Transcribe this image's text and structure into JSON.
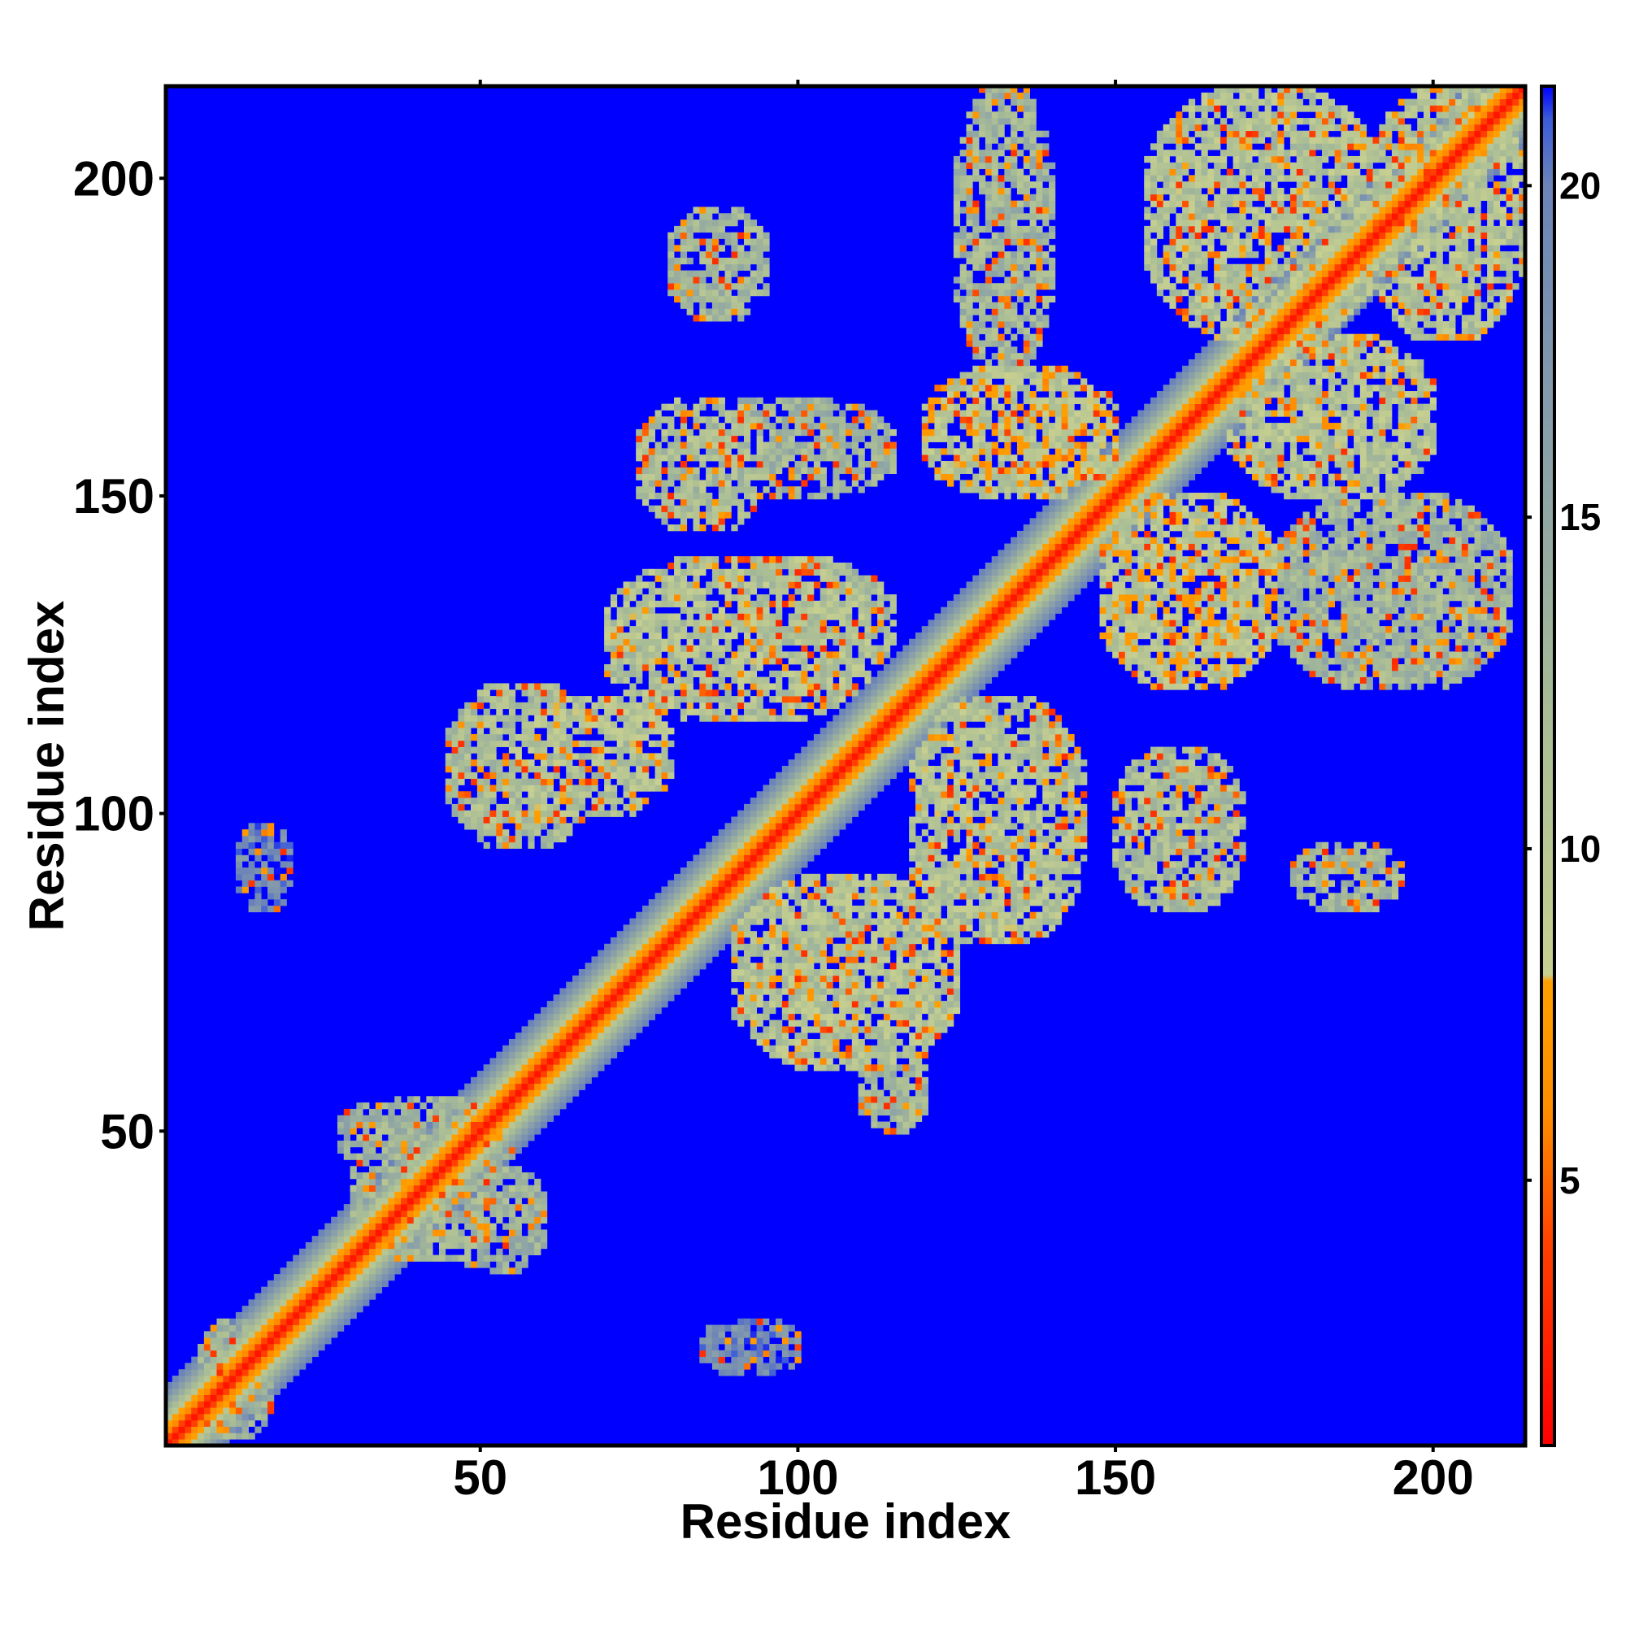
{
  "chart_data": {
    "type": "heatmap",
    "title": "",
    "xlabel": "Residue index",
    "ylabel": "Residue index",
    "xlim": [
      1,
      214
    ],
    "ylim": [
      1,
      214
    ],
    "x_ticks": [
      50,
      100,
      150,
      200
    ],
    "y_ticks": [
      50,
      100,
      150,
      200
    ],
    "x_tick_labels": [
      "50",
      "100",
      "150",
      "200"
    ],
    "y_tick_labels": [
      "50",
      "100",
      "150",
      "200"
    ],
    "colorbar": {
      "range": [
        1,
        21.5
      ],
      "ticks": [
        5,
        10,
        15,
        20
      ],
      "tick_labels": [
        "5",
        "10",
        "15",
        "20"
      ],
      "colormap": [
        {
          "value": 1,
          "color": "#ff0000"
        },
        {
          "value": 4,
          "color": "#ff4000"
        },
        {
          "value": 6,
          "color": "#ff8c00"
        },
        {
          "value": 8,
          "color": "#ffa000"
        },
        {
          "value": 8.1,
          "color": "#c8d090"
        },
        {
          "value": 12,
          "color": "#a8bc96"
        },
        {
          "value": 16,
          "color": "#8aa0a8"
        },
        {
          "value": 20,
          "color": "#6c84b8"
        },
        {
          "value": 21,
          "color": "#3c5cd8"
        },
        {
          "value": 21.5,
          "color": "#0000ff"
        }
      ]
    },
    "background_value": 21.5,
    "diagonal_band": {
      "core_value": 2,
      "half_width": 9
    },
    "contact_regions": [
      {
        "x": [
          6,
          17
        ],
        "y": [
          2,
          20
        ],
        "value": 14
      },
      {
        "x": [
          30,
          55
        ],
        "y": [
          30,
          55
        ],
        "value": 13
      },
      {
        "x": [
          45,
          60
        ],
        "y": [
          28,
          45
        ],
        "value": 14
      },
      {
        "x": [
          28,
          42
        ],
        "y": [
          45,
          54
        ],
        "value": 15
      },
      {
        "x": [
          45,
          68
        ],
        "y": [
          95,
          120
        ],
        "value": 12
      },
      {
        "x": [
          55,
          80
        ],
        "y": [
          100,
          118
        ],
        "value": 11
      },
      {
        "x": [
          70,
          112
        ],
        "y": [
          115,
          140
        ],
        "value": 11
      },
      {
        "x": [
          75,
          115
        ],
        "y": [
          120,
          140
        ],
        "value": 12
      },
      {
        "x": [
          75,
          95
        ],
        "y": [
          145,
          165
        ],
        "value": 12
      },
      {
        "x": [
          80,
          115
        ],
        "y": [
          150,
          165
        ],
        "value": 13
      },
      {
        "x": [
          80,
          95
        ],
        "y": [
          178,
          195
        ],
        "value": 13
      },
      {
        "x": [
          90,
          125
        ],
        "y": [
          60,
          90
        ],
        "value": 11
      },
      {
        "x": [
          110,
          120
        ],
        "y": [
          50,
          65
        ],
        "value": 13
      },
      {
        "x": [
          118,
          145
        ],
        "y": [
          80,
          118
        ],
        "value": 11
      },
      {
        "x": [
          120,
          150
        ],
        "y": [
          150,
          170
        ],
        "value": 10
      },
      {
        "x": [
          125,
          140
        ],
        "y": [
          170,
          214
        ],
        "value": 13
      },
      {
        "x": [
          148,
          175
        ],
        "y": [
          120,
          150
        ],
        "value": 10
      },
      {
        "x": [
          150,
          170
        ],
        "y": [
          85,
          110
        ],
        "value": 12
      },
      {
        "x": [
          155,
          192
        ],
        "y": [
          175,
          214
        ],
        "value": 11
      },
      {
        "x": [
          168,
          200
        ],
        "y": [
          150,
          175
        ],
        "value": 11
      },
      {
        "x": [
          175,
          212
        ],
        "y": [
          120,
          150
        ],
        "value": 13
      },
      {
        "x": [
          178,
          195
        ],
        "y": [
          85,
          95
        ],
        "value": 13
      },
      {
        "x": [
          190,
          214
        ],
        "y": [
          175,
          214
        ],
        "value": 11
      },
      {
        "x": [
          12,
          20
        ],
        "y": [
          85,
          98
        ],
        "value": 19
      },
      {
        "x": [
          85,
          100
        ],
        "y": [
          12,
          20
        ],
        "value": 19
      }
    ]
  }
}
